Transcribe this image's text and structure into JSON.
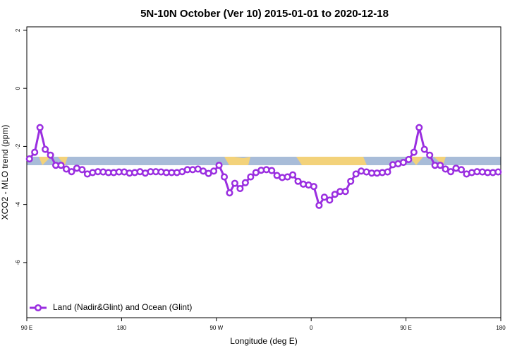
{
  "chart_data": {
    "type": "line",
    "title": "5N-10N October (Ver 10)   2015-01-01 to 2020-12-18",
    "xlabel": "Longitude (deg E)",
    "ylabel": "XCO2 - MLO trend (ppm)",
    "xlim": [
      90,
      540
    ],
    "xticks": [
      {
        "value": 90,
        "label": "90 E"
      },
      {
        "value": 180,
        "label": "180"
      },
      {
        "value": 270,
        "label": "90 W"
      },
      {
        "value": 360,
        "label": "0"
      },
      {
        "value": 450,
        "label": "90 E"
      },
      {
        "value": 540,
        "label": "180"
      }
    ],
    "ylim": [
      -7.9,
      2.12
    ],
    "yticks": [
      2,
      0,
      -2,
      -4,
      -6
    ],
    "legend": "bottom-left",
    "x": [
      92.5,
      97.5,
      102.5,
      107.5,
      112.5,
      117.5,
      122.5,
      127.5,
      132.5,
      137.5,
      142.5,
      147.5,
      152.5,
      157.5,
      162.5,
      167.5,
      172.5,
      177.5,
      182.5,
      187.5,
      192.5,
      197.5,
      202.5,
      207.5,
      212.5,
      217.5,
      222.5,
      227.5,
      232.5,
      237.5,
      242.5,
      247.5,
      252.5,
      257.5,
      262.5,
      267.5,
      272.5,
      277.5,
      282.5,
      287.5,
      292.5,
      297.5,
      302.5,
      307.5,
      312.5,
      317.5,
      322.5,
      327.5,
      332.5,
      337.5,
      342.5,
      347.5,
      352.5,
      357.5,
      362.5,
      367.5,
      372.5,
      377.5,
      382.5,
      387.5,
      392.5,
      397.5,
      402.5,
      407.5,
      412.5,
      417.5,
      422.5,
      427.5,
      432.5,
      437.5,
      442.5,
      447.5,
      452.5,
      457.5,
      462.5,
      467.5,
      472.5,
      477.5,
      482.5,
      487.5,
      492.5,
      497.5,
      502.5,
      507.5,
      512.5,
      517.5,
      522.5,
      527.5,
      532.5,
      537.5
    ],
    "series": [
      {
        "name": "Land (Nadir&Glint) and Ocean (Glint)",
        "color": "#9a2ee0",
        "values": [
          -2.43,
          -2.2,
          -1.35,
          -2.1,
          -2.3,
          -2.65,
          -2.65,
          -2.78,
          -2.87,
          -2.75,
          -2.8,
          -2.95,
          -2.9,
          -2.87,
          -2.88,
          -2.9,
          -2.9,
          -2.88,
          -2.88,
          -2.92,
          -2.9,
          -2.87,
          -2.92,
          -2.87,
          -2.87,
          -2.88,
          -2.9,
          -2.9,
          -2.9,
          -2.87,
          -2.8,
          -2.8,
          -2.78,
          -2.85,
          -2.93,
          -2.85,
          -2.65,
          -3.05,
          -3.6,
          -3.27,
          -3.45,
          -3.25,
          -3.05,
          -2.9,
          -2.82,
          -2.8,
          -2.83,
          -3.0,
          -3.07,
          -3.05,
          -2.98,
          -3.2,
          -3.3,
          -3.33,
          -3.38,
          -4.03,
          -3.75,
          -3.85,
          -3.65,
          -3.55,
          -3.55,
          -3.2,
          -2.95,
          -2.85,
          -2.88,
          -2.92,
          -2.92,
          -2.9,
          -2.88,
          -2.63,
          -2.6,
          -2.55,
          -2.45,
          -2.2,
          -1.35,
          -2.1,
          -2.3,
          -2.65,
          -2.65,
          -2.78,
          -2.87,
          -2.75,
          -2.8,
          -2.95,
          -2.9,
          -2.87,
          -2.88,
          -2.9,
          -2.9,
          -2.88
        ]
      }
    ]
  }
}
